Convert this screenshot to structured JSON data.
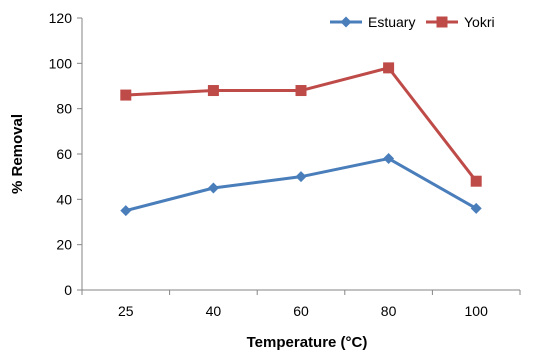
{
  "chart_data": {
    "type": "line",
    "categories": [
      "25",
      "40",
      "60",
      "80",
      "100"
    ],
    "series": [
      {
        "name": "Estuary",
        "values": [
          35,
          45,
          50,
          58,
          36
        ],
        "color": "#4a7ebb",
        "marker": "diamond"
      },
      {
        "name": "Yokri",
        "values": [
          86,
          88,
          88,
          98,
          48
        ],
        "color": "#be4b48",
        "marker": "square"
      }
    ],
    "xlabel": "Temperature (°C)",
    "ylabel": "% Removal",
    "ylim": [
      0,
      120
    ],
    "yticks": [
      0,
      20,
      40,
      60,
      80,
      100,
      120
    ],
    "grid": false,
    "legend": "top-right"
  }
}
